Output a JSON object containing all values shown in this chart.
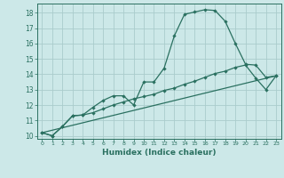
{
  "xlabel": "Humidex (Indice chaleur)",
  "background_color": "#cce8e8",
  "grid_color": "#aacccc",
  "line_color": "#2a7060",
  "xlim": [
    -0.5,
    23.5
  ],
  "ylim": [
    9.8,
    18.6
  ],
  "yticks": [
    10,
    11,
    12,
    13,
    14,
    15,
    16,
    17,
    18
  ],
  "xticks": [
    0,
    1,
    2,
    3,
    4,
    5,
    6,
    7,
    8,
    9,
    10,
    11,
    12,
    13,
    14,
    15,
    16,
    17,
    18,
    19,
    20,
    21,
    22,
    23
  ],
  "series1_x": [
    0,
    1,
    2,
    3,
    4,
    5,
    6,
    7,
    8,
    9,
    10,
    11,
    12,
    13,
    14,
    15,
    16,
    17,
    18,
    19,
    20,
    21,
    22,
    23
  ],
  "series1_y": [
    10.2,
    10.0,
    10.6,
    11.3,
    11.35,
    11.85,
    12.3,
    12.6,
    12.6,
    12.0,
    13.5,
    13.5,
    14.4,
    16.5,
    17.9,
    18.05,
    18.2,
    18.15,
    17.45,
    16.0,
    14.65,
    14.6,
    13.8,
    13.9
  ],
  "series2_x": [
    0,
    1,
    2,
    3,
    4,
    5,
    6,
    7,
    8,
    9,
    10,
    11,
    12,
    13,
    14,
    15,
    16,
    17,
    18,
    19,
    20,
    21,
    22,
    23
  ],
  "series2_y": [
    10.2,
    10.0,
    10.6,
    11.3,
    11.35,
    11.5,
    11.75,
    12.0,
    12.2,
    12.4,
    12.55,
    12.7,
    12.95,
    13.1,
    13.35,
    13.55,
    13.8,
    14.05,
    14.2,
    14.45,
    14.6,
    13.75,
    13.0,
    13.9
  ],
  "series3_x": [
    0,
    23
  ],
  "series3_y": [
    10.2,
    13.9
  ]
}
